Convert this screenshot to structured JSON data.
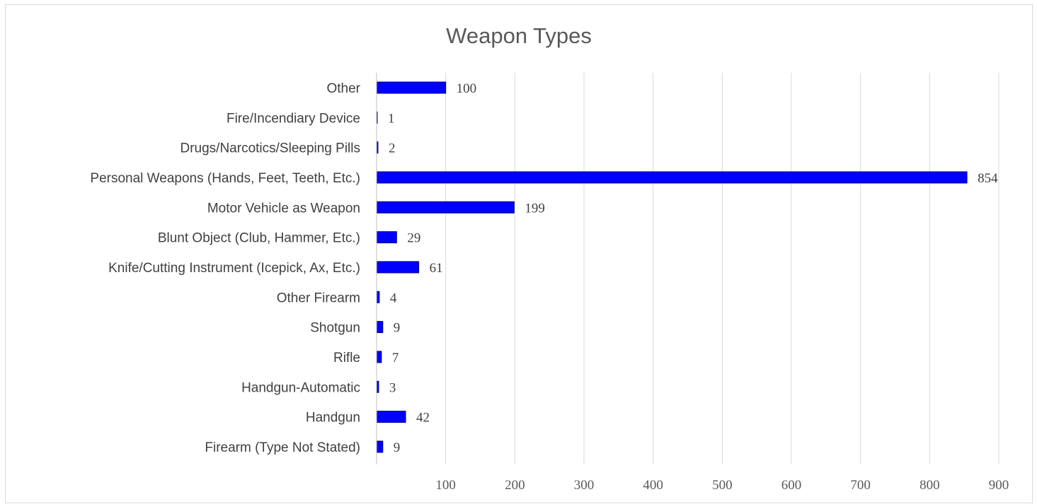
{
  "chart_data": {
    "type": "bar",
    "orientation": "horizontal",
    "title": "Weapon Types",
    "xlabel": "",
    "ylabel": "",
    "xlim": [
      0,
      900
    ],
    "ticks": [
      "100",
      "200",
      "300",
      "400",
      "500",
      "600",
      "700",
      "800",
      "900"
    ],
    "tick_values": [
      100,
      200,
      300,
      400,
      500,
      600,
      700,
      800,
      900
    ],
    "grid": true,
    "legend": "none",
    "bar_color": "#0000ff",
    "bar_border_color": "#000080",
    "categories": [
      "Other",
      "Fire/Incendiary Device",
      "Drugs/Narcotics/Sleeping Pills",
      "Personal Weapons (Hands, Feet, Teeth, Etc.)",
      "Motor Vehicle as Weapon",
      "Blunt Object (Club, Hammer, Etc.)",
      "Knife/Cutting Instrument (Icepick, Ax, Etc.)",
      "Other Firearm",
      "Shotgun",
      "Rifle",
      "Handgun-Automatic",
      "Handgun",
      "Firearm (Type Not Stated)"
    ],
    "values": [
      100,
      1,
      2,
      854,
      199,
      29,
      61,
      4,
      9,
      7,
      3,
      42,
      9
    ],
    "value_labels": [
      "100",
      "1",
      "2",
      "854",
      "199",
      "29",
      "61",
      "4",
      "9",
      "7",
      "3",
      "42",
      "9"
    ]
  }
}
